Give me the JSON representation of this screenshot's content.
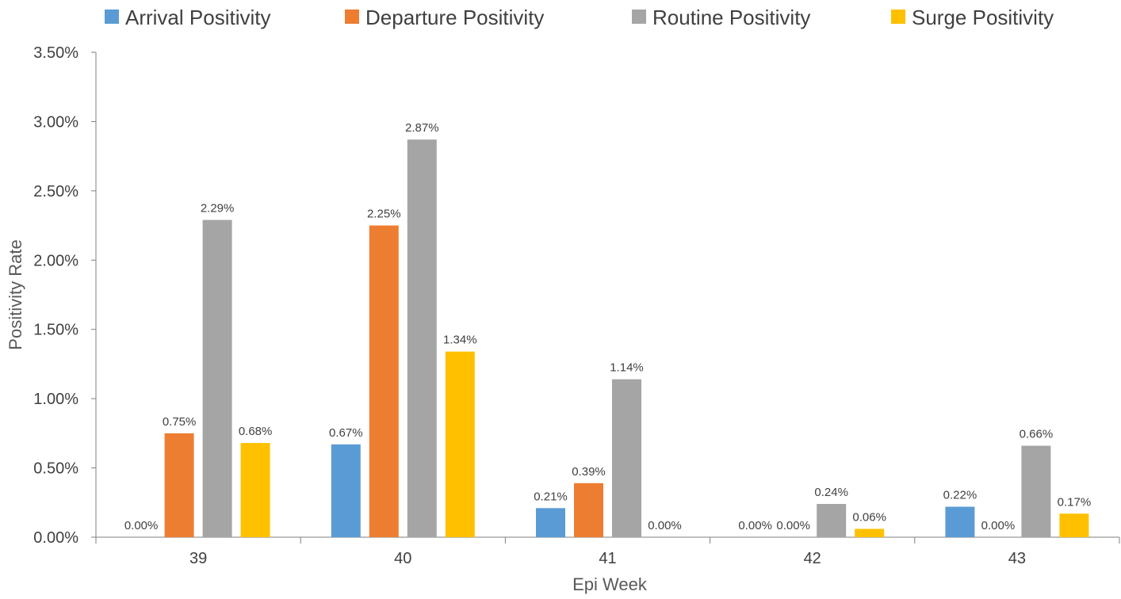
{
  "chart_data": {
    "type": "bar",
    "title": "",
    "xlabel": "Epi Week",
    "ylabel": "Positivity Rate",
    "categories": [
      "39",
      "40",
      "41",
      "42",
      "43"
    ],
    "series": [
      {
        "name": "Arrival Positivity",
        "color": "#5B9BD5",
        "values": [
          0.0,
          0.67,
          0.21,
          0.0,
          0.22
        ],
        "labels": [
          "0.00%",
          "0.67%",
          "0.21%",
          "0.00%",
          "0.22%"
        ]
      },
      {
        "name": "Departure Positivity",
        "color": "#ED7D31",
        "values": [
          0.75,
          2.25,
          0.39,
          0.0,
          0.0
        ],
        "labels": [
          "0.75%",
          "2.25%",
          "0.39%",
          "0.00%",
          "0.00%"
        ]
      },
      {
        "name": "Routine Positivity",
        "color": "#A5A5A5",
        "values": [
          2.29,
          2.87,
          1.14,
          0.24,
          0.66
        ],
        "labels": [
          "2.29%",
          "2.87%",
          "1.14%",
          "0.24%",
          "0.66%"
        ]
      },
      {
        "name": "Surge Positivity",
        "color": "#FFC000",
        "values": [
          0.68,
          1.34,
          0.0,
          0.06,
          0.17
        ],
        "labels": [
          "0.68%",
          "1.34%",
          "0.00%",
          "0.06%",
          "0.17%"
        ]
      }
    ],
    "ylim": [
      0,
      3.5
    ],
    "y_ticks": [
      0,
      0.5,
      1.0,
      1.5,
      2.0,
      2.5,
      3.0,
      3.5
    ],
    "y_tick_labels": [
      "0.00%",
      "0.50%",
      "1.00%",
      "1.50%",
      "2.00%",
      "2.50%",
      "3.00%",
      "3.50%"
    ],
    "legend_position": "top",
    "grid": false
  }
}
